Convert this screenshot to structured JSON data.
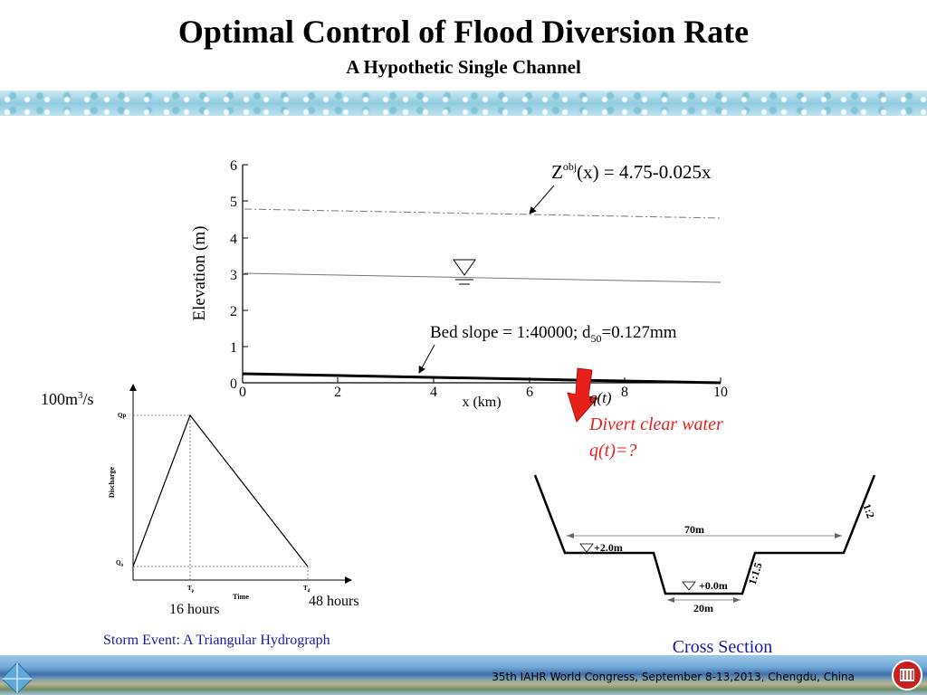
{
  "header": {
    "title": "Optimal Control of Flood Diversion Rate",
    "subtitle": "A Hypothetic Single Channel"
  },
  "profile": {
    "y_label": "Elevation (m)",
    "x_label": "x (km)",
    "x_ticks": [
      "0",
      "2",
      "4",
      "6",
      "8",
      "10"
    ],
    "y_ticks": [
      "0",
      "1",
      "2",
      "3",
      "4",
      "5",
      "6"
    ],
    "objective_base": "Z",
    "objective_sup": "obj",
    "objective_rest": "(x) = 4.75-0.025x",
    "bed_text_1": "Bed slope = 1:40000; d",
    "bed_sub": "50",
    "bed_text_2": "=0.127mm",
    "qt_label": "q(t)"
  },
  "divert": {
    "line1": "Divert clear water",
    "line2": "q(t)=?"
  },
  "hydrograph": {
    "scale_label": "100m",
    "scale_sup": "3",
    "scale_unit": "/s",
    "y_axis_label": "Discharge",
    "x_axis_label": "Time",
    "qp_label": "Qp",
    "q0_label": "Q",
    "q0_sub": "0",
    "tp_label": "T",
    "tp_sub": "p",
    "td_label": "T",
    "td_sub": "d",
    "tp_hours": "16 hours",
    "td_hours": "48 hours",
    "caption": "Storm Event: A Triangular Hydrograph"
  },
  "cross_section": {
    "top_width": "70m",
    "bottom_width": "20m",
    "floodplain_level": "+2.0m",
    "bed_level": "+0.0m",
    "outer_slope": "1:2",
    "inner_slope": "1:1.5",
    "caption": "Cross Section"
  },
  "footer": {
    "text": "35th IAHR World Congress, September 8-13,2013, Chengdu, China"
  },
  "colors": {
    "red": "#e8201c",
    "caption_blue": "#1a1aa0"
  }
}
